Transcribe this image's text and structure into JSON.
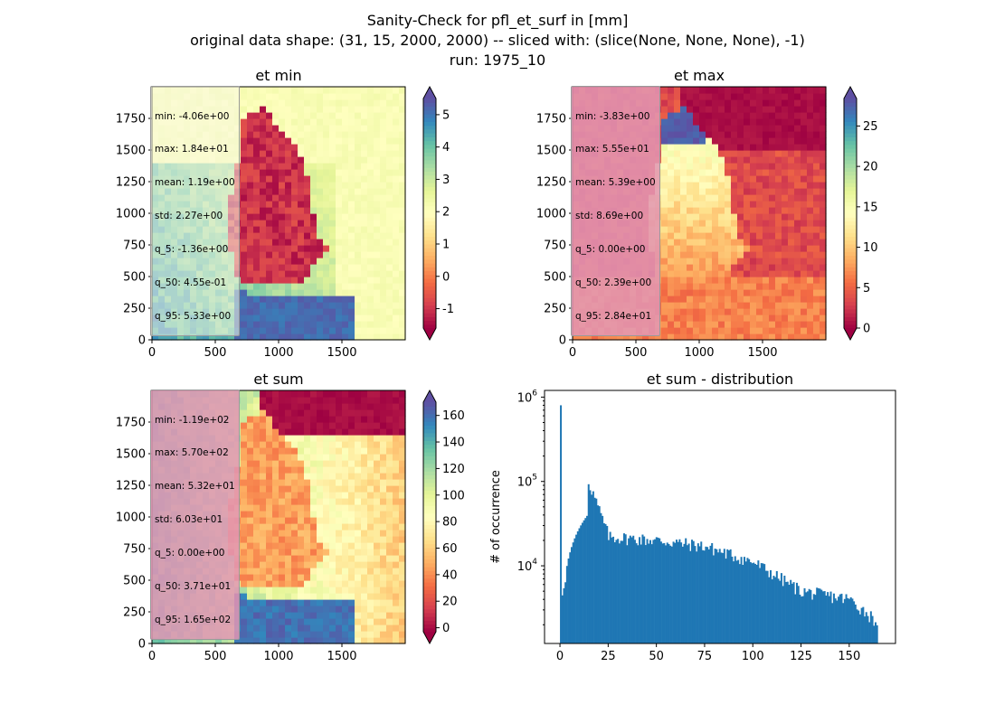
{
  "figure": {
    "title_lines": [
      "Sanity-Check for pfl_et_surf in [mm]",
      "original data shape: (31, 15, 2000, 2000) -- sliced with: (slice(None, None, None), -1)",
      "run: 1975_10"
    ]
  },
  "chart_data": [
    {
      "type": "heatmap",
      "title": "et min",
      "xlim": [
        0,
        2000
      ],
      "ylim": [
        0,
        2000
      ],
      "x_ticks": [
        0,
        500,
        1000,
        1500
      ],
      "y_ticks": [
        0,
        250,
        500,
        750,
        1000,
        1250,
        1500,
        1750
      ],
      "colormap": "Spectral",
      "colorbar": {
        "range": [
          -1.6,
          5.5
        ],
        "ticks": [
          -1,
          0,
          1,
          2,
          3,
          4,
          5
        ],
        "extend": "both"
      },
      "stats": {
        "min": "-4.06e+00",
        "max": "1.84e+01",
        "mean": "1.19e+00",
        "std": "2.27e+00",
        "q_5": "-1.36e+00",
        "q_50": "4.55e-01",
        "q_95": "5.33e+00"
      }
    },
    {
      "type": "heatmap",
      "title": "et max",
      "xlim": [
        0,
        2000
      ],
      "ylim": [
        0,
        2000
      ],
      "x_ticks": [
        0,
        500,
        1000,
        1500
      ],
      "y_ticks": [
        0,
        250,
        500,
        750,
        1000,
        1250,
        1500,
        1750
      ],
      "colormap": "Spectral",
      "colorbar": {
        "range": [
          0,
          28.4
        ],
        "ticks": [
          0,
          5,
          10,
          15,
          20,
          25
        ],
        "extend": "both"
      },
      "stats": {
        "min": "-3.83e+00",
        "max": "5.55e+01",
        "mean": "5.39e+00",
        "std": "8.69e+00",
        "q_5": "0.00e+00",
        "q_50": "2.39e+00",
        "q_95": "2.84e+01"
      }
    },
    {
      "type": "heatmap",
      "title": "et sum",
      "xlim": [
        0,
        2000
      ],
      "ylim": [
        0,
        2000
      ],
      "x_ticks": [
        0,
        500,
        1000,
        1500
      ],
      "y_ticks": [
        0,
        250,
        500,
        750,
        1000,
        1250,
        1500,
        1750
      ],
      "colormap": "Spectral",
      "colorbar": {
        "range": [
          -3,
          170
        ],
        "ticks": [
          0,
          20,
          40,
          60,
          80,
          100,
          120,
          140,
          160
        ],
        "extend": "both"
      },
      "stats": {
        "min": "-1.19e+02",
        "max": "5.70e+02",
        "mean": "5.32e+01",
        "std": "6.03e+01",
        "q_5": "0.00e+00",
        "q_50": "3.71e+01",
        "q_95": "1.65e+02"
      }
    },
    {
      "type": "bar",
      "title": "et sum - distribution",
      "ylabel": "# of occurrence",
      "yscale": "log",
      "xlim": [
        -8,
        174
      ],
      "ylim": [
        1200,
        1200000
      ],
      "x_ticks": [
        0,
        25,
        50,
        75,
        100,
        125,
        150
      ],
      "y_ticks": [
        10000,
        100000,
        1000000
      ],
      "y_tick_labels": [
        {
          "base": "10",
          "exp": "4"
        },
        {
          "base": "10",
          "exp": "5"
        },
        {
          "base": "10",
          "exp": "6"
        }
      ],
      "color": "#1f77b4",
      "bin_width": 0.8,
      "x": [
        0,
        25,
        50,
        75,
        100,
        125,
        150,
        164
      ],
      "values": [
        800000,
        22000,
        20000,
        17000,
        11000,
        5000,
        4000,
        2200
      ]
    }
  ]
}
